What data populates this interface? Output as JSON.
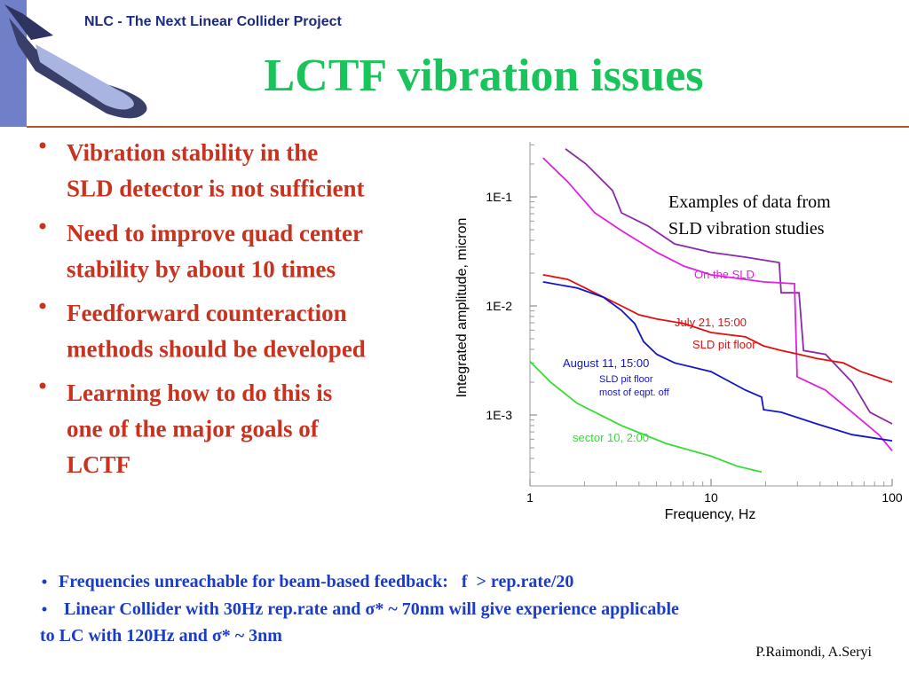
{
  "slide": {
    "header": "NLC - The Next Linear Collider Project",
    "title": "LCTF vibration issues",
    "bullets": [
      {
        "lines": [
          "Vibration stability in the",
          "SLD detector is not sufficient"
        ]
      },
      {
        "lines": [
          "Need to improve quad center",
          "stability by about 10 times"
        ]
      },
      {
        "lines": [
          "Feedforward counteraction",
          "methods should be developed"
        ]
      },
      {
        "lines": [
          "Learning how to do this is",
          "one of the major goals of",
          "LCTF"
        ]
      }
    ],
    "bottom_bullets": [
      {
        "lines": [
          "Frequencies unreachable for beam-based feedback:   f  > rep.rate/20"
        ]
      },
      {
        "lines": [
          "Linear Collider with 30Hz rep.rate and σ* ~ 70nm will give experience applicable",
          "to LC with 120Hz and σ* ~ 3nm"
        ]
      }
    ],
    "credit": "P.Raimondi, A.Seryi"
  },
  "chart_data": {
    "type": "line",
    "xlabel": "Frequency, Hz",
    "ylabel": "Integrated amplitude, micron",
    "annotation": [
      "Examples of data from",
      "SLD vibration studies"
    ],
    "log_x": true,
    "log_y": true,
    "xlim": [
      1,
      100
    ],
    "ylim": [
      0.0002,
      0.3
    ],
    "xticks": [
      1,
      10,
      100
    ],
    "xminor_ticks": [
      2,
      3,
      4,
      5,
      6,
      7,
      8,
      9,
      20,
      30,
      40,
      50,
      60,
      70,
      80,
      90
    ],
    "yticks": [
      {
        "value": 0.001,
        "label": "1E-3"
      },
      {
        "value": 0.01,
        "label": "1E-2"
      },
      {
        "value": 0.1,
        "label": "1E-1"
      }
    ],
    "yminor_ticks": [
      0.0003,
      0.0004,
      0.0005,
      0.0006,
      0.0007,
      0.0008,
      0.0009,
      0.002,
      0.003,
      0.004,
      0.005,
      0.006,
      0.007,
      0.008,
      0.009,
      0.02,
      0.03,
      0.04,
      0.05,
      0.06,
      0.07,
      0.08,
      0.09,
      0.2,
      0.3
    ],
    "series": [
      {
        "color": "#8a2aa8",
        "x": [
          1.57,
          2.04,
          2.86,
          3.2,
          4.49,
          6.3,
          10,
          15.5,
          23.8,
          24.4,
          30.6,
          32.4,
          42.9,
          60.1,
          75.4,
          100
        ],
        "values": [
          0.275,
          0.2,
          0.114,
          0.0714,
          0.054,
          0.037,
          0.031,
          0.028,
          0.025,
          0.0132,
          0.0132,
          0.0039,
          0.0036,
          0.002,
          0.00106,
          0.00083
        ]
      },
      {
        "name": "On the SLD",
        "color": "#e020e0",
        "x": [
          1.18,
          1.62,
          2.28,
          3.2,
          5.02,
          7.05,
          10,
          19.5,
          28.9,
          29.9,
          42.9,
          60.1,
          84.4,
          100
        ],
        "values": [
          0.228,
          0.137,
          0.0714,
          0.049,
          0.031,
          0.0232,
          0.0193,
          0.0166,
          0.016,
          0.00224,
          0.00169,
          0.00106,
          0.00066,
          0.00047
        ]
      },
      {
        "name": "July 21, 15:00",
        "notes": [
          "SLD pit floor"
        ],
        "color": "#e01010",
        "x": [
          1.18,
          1.62,
          2.28,
          3.2,
          4.0,
          5.02,
          7.05,
          10,
          15.5,
          19.5,
          24.4,
          30.6,
          38.3,
          53.8,
          67.3,
          100
        ],
        "values": [
          0.0193,
          0.0175,
          0.0132,
          0.01,
          0.0083,
          0.0076,
          0.0069,
          0.0057,
          0.0052,
          0.0043,
          0.0039,
          0.0036,
          0.0033,
          0.003,
          0.0025,
          0.002
        ]
      },
      {
        "name": "August 11, 15:00",
        "notes": [
          "SLD pit floor",
          "most of eqpt. off"
        ],
        "color": "#1414c8",
        "x": [
          1.18,
          1.82,
          2.55,
          3.2,
          3.79,
          4.24,
          5.02,
          6.3,
          10,
          15.5,
          19.0,
          19.5,
          24.4,
          38.3,
          60.1,
          100
        ],
        "values": [
          0.0166,
          0.0146,
          0.012,
          0.0091,
          0.0069,
          0.0047,
          0.0036,
          0.003,
          0.0025,
          0.00169,
          0.00146,
          0.00112,
          0.00106,
          0.00083,
          0.00066,
          0.00058
        ]
      },
      {
        "name": "sector 10, 2:00",
        "color": "#33dd33",
        "x": [
          1.0,
          1.3,
          1.82,
          3.2,
          5.62,
          10,
          13.9,
          19.0
        ],
        "values": [
          0.0031,
          0.002,
          0.00128,
          0.0008,
          0.00055,
          0.00042,
          0.00034,
          0.0003
        ]
      }
    ]
  }
}
